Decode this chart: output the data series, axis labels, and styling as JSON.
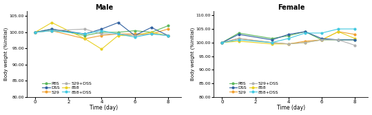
{
  "male": {
    "title": "Male",
    "x": [
      0,
      1,
      3,
      4,
      5,
      6,
      7,
      8
    ],
    "series_order": [
      "PBS",
      "529",
      "858",
      "DSS",
      "529+DSS",
      "858+DSS"
    ],
    "series": {
      "PBS": [
        100.0,
        101.0,
        99.0,
        100.0,
        100.0,
        100.5,
        100.0,
        102.0
      ],
      "529": [
        100.0,
        100.5,
        98.0,
        99.0,
        99.5,
        99.5,
        99.5,
        101.0
      ],
      "858": [
        100.0,
        103.0,
        98.0,
        94.8,
        99.0,
        99.0,
        100.0,
        99.0
      ],
      "DSS": [
        100.0,
        101.0,
        99.5,
        101.0,
        103.0,
        99.0,
        101.5,
        99.0
      ],
      "529+DSS": [
        100.0,
        100.5,
        101.0,
        99.5,
        99.5,
        99.0,
        99.5,
        99.0
      ],
      "858+DSS": [
        100.0,
        100.5,
        99.5,
        100.5,
        99.5,
        98.5,
        99.5,
        99.0
      ]
    },
    "ylim": [
      80,
      106.5
    ],
    "yticks": [
      80.0,
      85.0,
      90.0,
      95.0,
      100.0,
      105.0
    ],
    "ytick_labels": [
      "80.00",
      "85.00",
      "90.00",
      "95.00",
      "100.00",
      "105.00"
    ],
    "xticks": [
      0,
      2,
      4,
      6,
      8
    ]
  },
  "female": {
    "title": "Female",
    "x": [
      0,
      1,
      3,
      4,
      5,
      6,
      7,
      8
    ],
    "series_order": [
      "PBS",
      "529",
      "858",
      "DSS",
      "529+DSS",
      "858+DSS"
    ],
    "series": {
      "PBS": [
        100.0,
        103.5,
        101.5,
        102.5,
        104.0,
        101.0,
        101.0,
        101.0
      ],
      "529": [
        100.0,
        101.5,
        100.0,
        99.5,
        100.5,
        101.0,
        104.0,
        103.0
      ],
      "858": [
        100.0,
        100.5,
        99.5,
        99.5,
        100.0,
        101.0,
        104.0,
        101.5
      ],
      "DSS": [
        100.0,
        103.0,
        101.0,
        103.0,
        104.0,
        101.5,
        101.0,
        101.0
      ],
      "529+DSS": [
        100.0,
        101.5,
        100.0,
        99.5,
        100.0,
        101.0,
        101.0,
        99.0
      ],
      "858+DSS": [
        100.0,
        101.0,
        100.0,
        101.5,
        103.5,
        103.5,
        105.0,
        105.0
      ]
    },
    "ylim": [
      80,
      111.5
    ],
    "yticks": [
      80.0,
      85.0,
      90.0,
      95.0,
      100.0,
      105.0,
      110.0
    ],
    "ytick_labels": [
      "80.00",
      "85.00",
      "90.00",
      "95.00",
      "100.00",
      "105.00",
      "110.00"
    ],
    "xticks": [
      0,
      2,
      4,
      6,
      8
    ]
  },
  "colors": {
    "PBS": "#5CB85C",
    "529": "#F0A030",
    "858": "#E8D020",
    "DSS": "#3060A0",
    "529+DSS": "#B0B0B0",
    "858+DSS": "#40C8E0"
  },
  "xlabel": "Time (day)",
  "ylabel": "Body weight (%initial)",
  "legend_order_left": [
    "PBS",
    "529",
    "858"
  ],
  "legend_order_right": [
    "DSS",
    "529+DSS",
    "858+DSS"
  ]
}
